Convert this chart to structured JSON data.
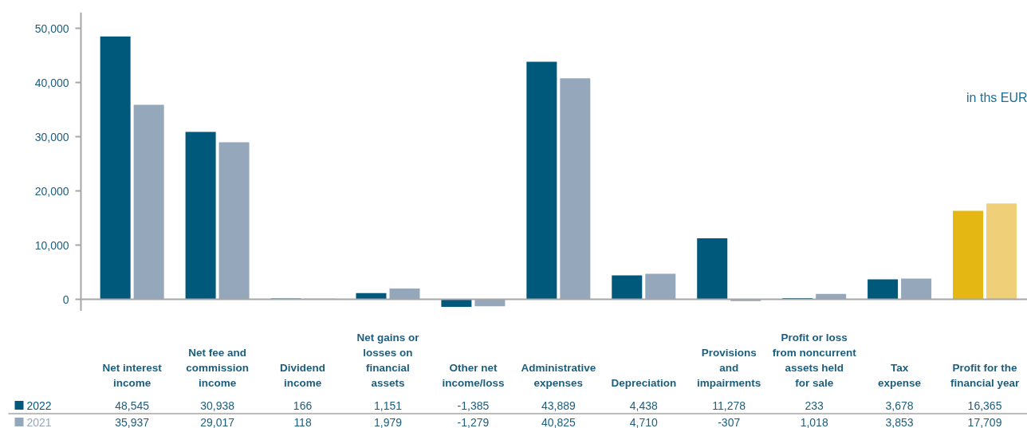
{
  "chart_data": {
    "type": "bar",
    "categories": [
      "Net interest\nincome",
      "Net fee and\ncommission\nincome",
      "Dividend\nincome",
      "Net gains or\nlosses on\nfinancial\nassets",
      "Other net\nincome/loss",
      "Administrative\nexpenses",
      "Depreciation",
      "Provisions\nand\nimpairments",
      "Profit or loss\nfrom noncurrent\nassets held\nfor sale",
      "Tax\nexpense",
      "Profit for the\nfinancial year"
    ],
    "series": [
      {
        "name": "2022",
        "color": "#00587a",
        "colors": [
          "#00587a",
          "#00587a",
          "#00587a",
          "#00587a",
          "#00587a",
          "#00587a",
          "#00587a",
          "#00587a",
          "#00587a",
          "#00587a",
          "#e4b713"
        ],
        "values": [
          48545,
          30938,
          166,
          1151,
          -1385,
          43889,
          4438,
          11278,
          233,
          3678,
          16365
        ],
        "value_labels": [
          "48,545",
          "30,938",
          "166",
          "1,151",
          "-1,385",
          "43,889",
          "4,438",
          "11,278",
          "233",
          "3,678",
          "16,365"
        ]
      },
      {
        "name": "2021",
        "color": "#95a7bb",
        "colors": [
          "#95a7bb",
          "#95a7bb",
          "#95a7bb",
          "#95a7bb",
          "#95a7bb",
          "#95a7bb",
          "#95a7bb",
          "#95a7bb",
          "#95a7bb",
          "#95a7bb",
          "#efcf78"
        ],
        "values": [
          35937,
          29017,
          118,
          1979,
          -1279,
          40825,
          4710,
          -307,
          1018,
          3853,
          17709
        ],
        "value_labels": [
          "35,937",
          "29,017",
          "118",
          "1,979",
          "-1,279",
          "40,825",
          "4,710",
          "-307",
          "1,018",
          "3,853",
          "17,709"
        ]
      }
    ],
    "ylim": [
      -2200,
      53000
    ],
    "yticks": [
      0,
      {
        "value": 10000,
        "label": "10,000"
      },
      {
        "value": 20000,
        "label": "20,000"
      },
      {
        "value": 30000,
        "label": "30,000"
      },
      {
        "value": 40000,
        "label": "40,000"
      },
      {
        "value": 50000,
        "label": "50,000"
      }
    ],
    "annotations": [
      "in ths EUR"
    ],
    "legend": "bottom left"
  }
}
